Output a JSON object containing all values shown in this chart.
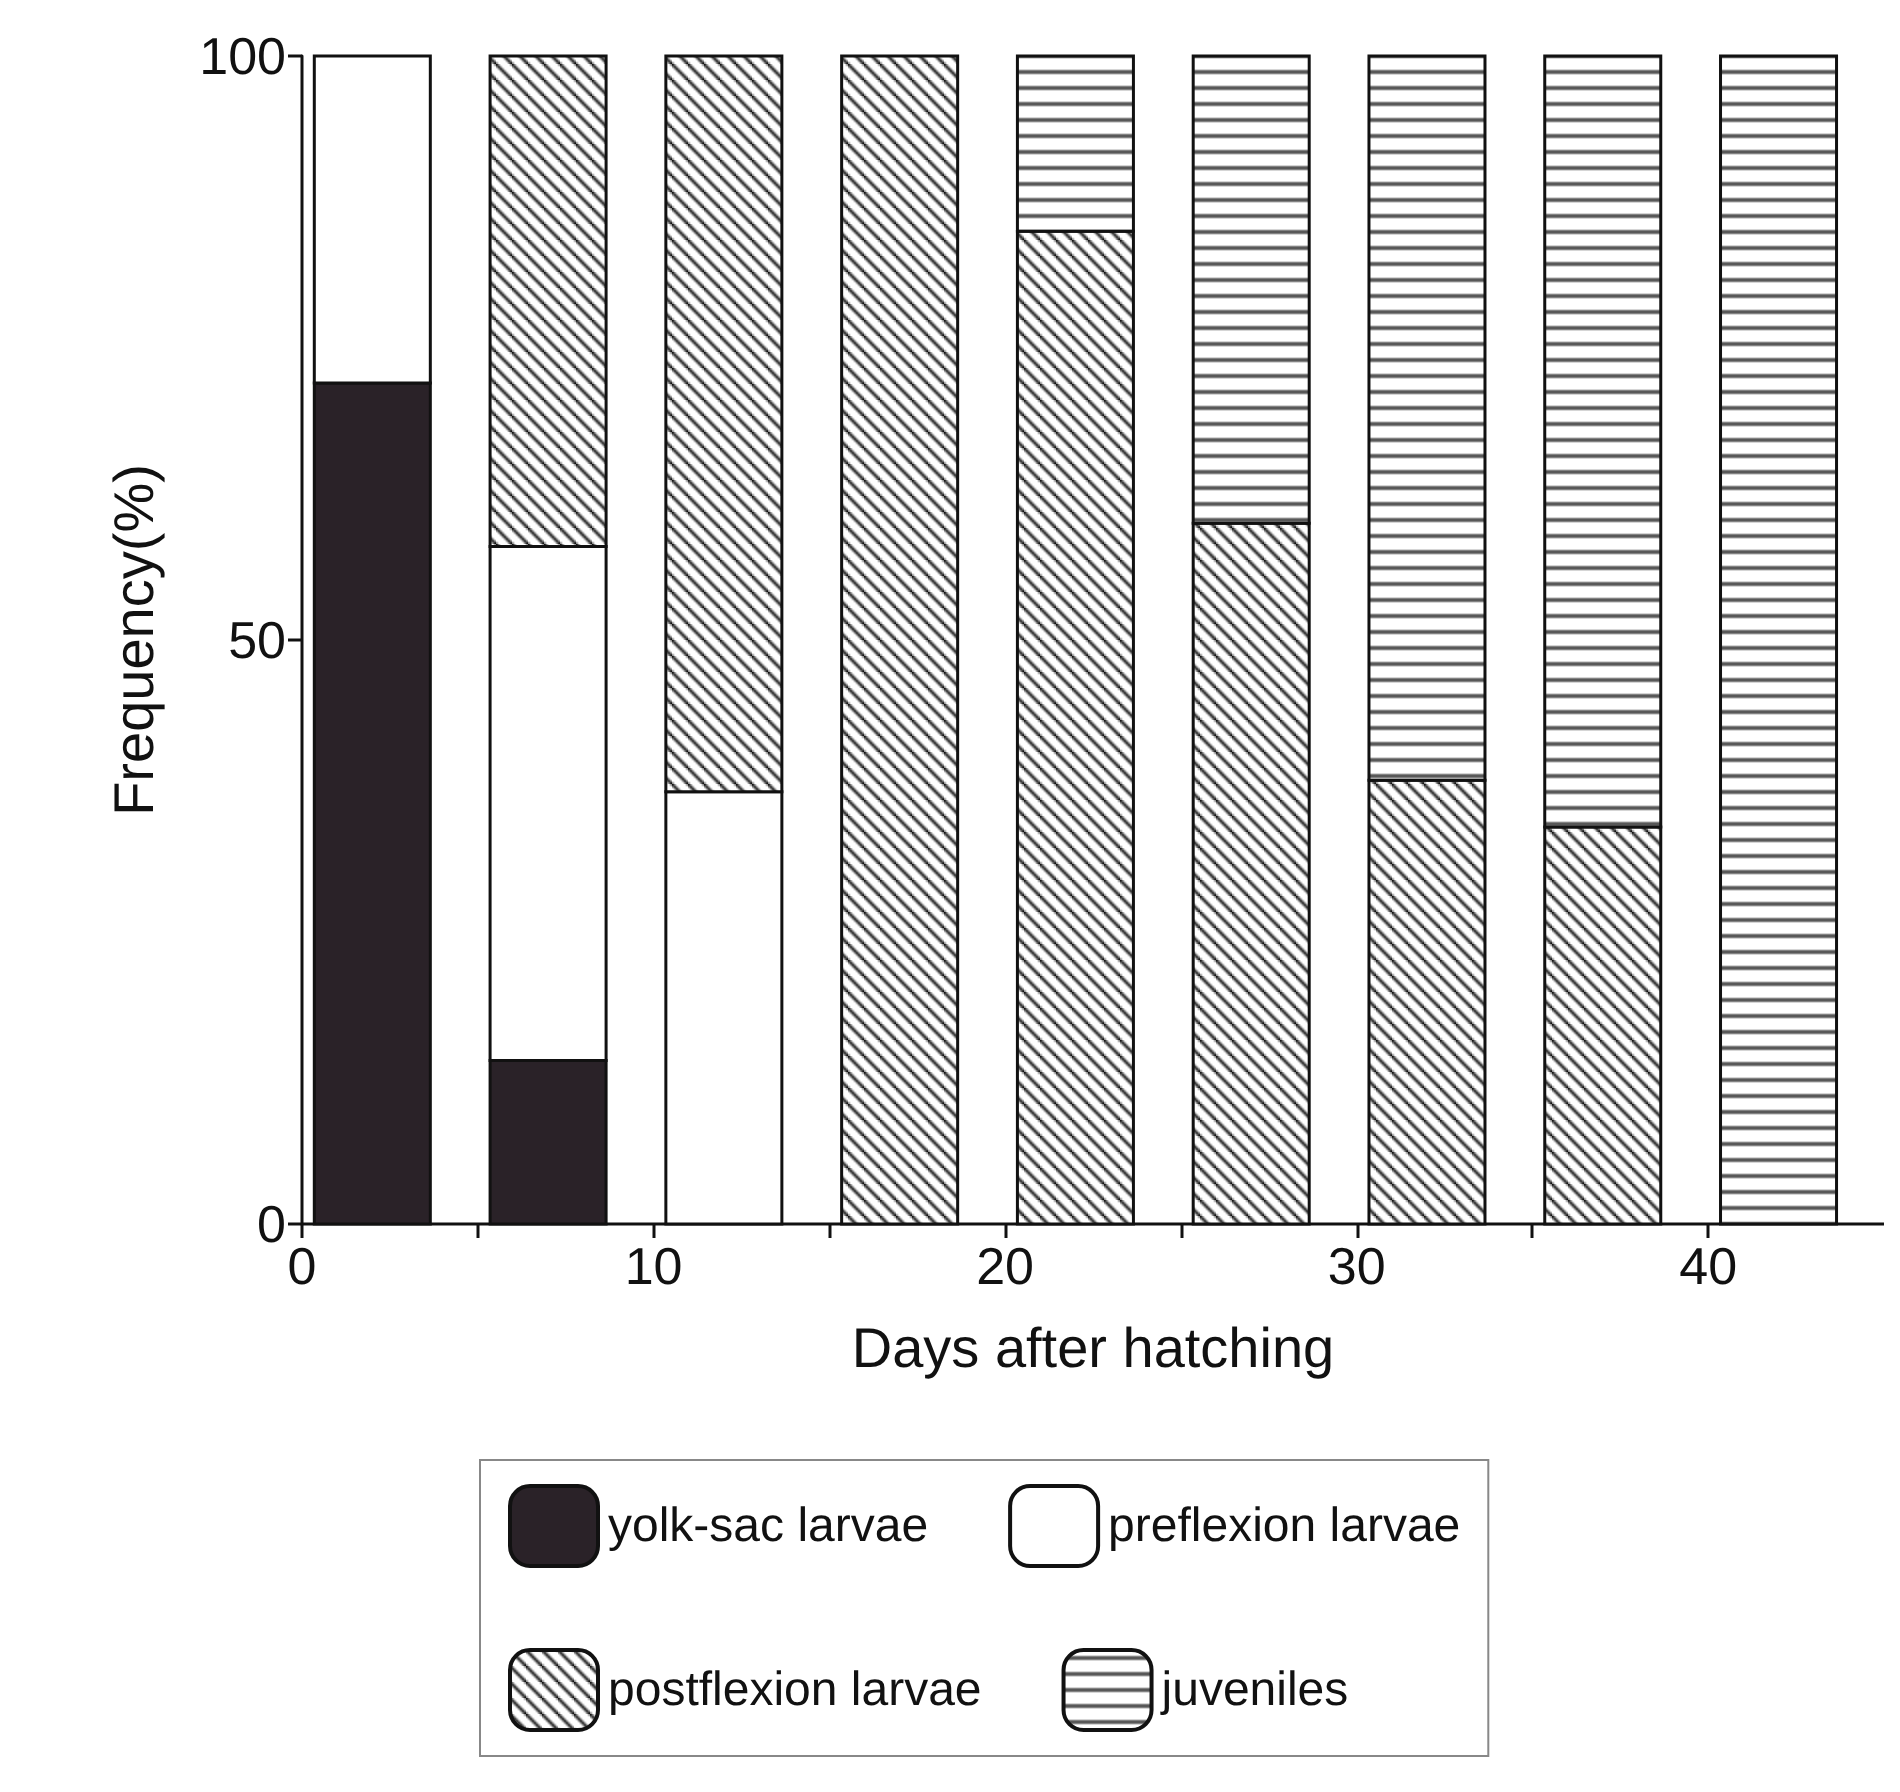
{
  "chart_data": {
    "type": "bar",
    "stacked": true,
    "xlabel": "Days after hatching",
    "ylabel": "Frequency(%)",
    "x": [
      2,
      7,
      12,
      17,
      22,
      27,
      32,
      37,
      42
    ],
    "series": [
      {
        "name": "yolk-sac larvae",
        "color": "#2a2228",
        "values": [
          72,
          14,
          0,
          0,
          0,
          0,
          0,
          0,
          0
        ]
      },
      {
        "name": "preflexion larvae",
        "color": "#ffffff",
        "values": [
          28,
          44,
          37,
          0,
          0,
          0,
          0,
          0,
          0
        ]
      },
      {
        "name": "postflexion larvae",
        "color": "#111111",
        "values": [
          0,
          42,
          63,
          100,
          85,
          60,
          38,
          34,
          0
        ]
      },
      {
        "name": "juveniles",
        "color": "#111111",
        "values": [
          0,
          0,
          0,
          0,
          15,
          40,
          62,
          66,
          100
        ]
      }
    ],
    "xlim": [
      0,
      45
    ],
    "xticks": [
      0,
      {
        "value": 5,
        "label": null
      },
      10,
      {
        "value": 15,
        "label": null
      },
      20,
      {
        "value": 25,
        "label": null
      },
      30,
      {
        "value": 35,
        "label": null
      },
      40
    ],
    "ylim": [
      0,
      100
    ],
    "yticks": [
      0,
      50,
      100
    ],
    "grid": false,
    "legend": "bottom"
  }
}
